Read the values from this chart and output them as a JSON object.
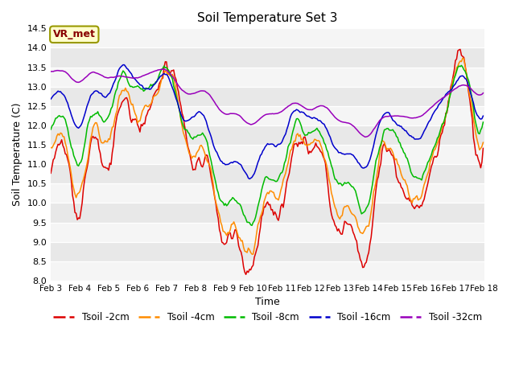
{
  "title": "Soil Temperature Set 3",
  "xlabel": "Time",
  "ylabel": "Soil Temperature (C)",
  "ylim": [
    8.0,
    14.5
  ],
  "y_ticks": [
    8.0,
    8.5,
    9.0,
    9.5,
    10.0,
    10.5,
    11.0,
    11.5,
    12.0,
    12.5,
    13.0,
    13.5,
    14.0,
    14.5
  ],
  "x_tick_labels": [
    "Feb 3",
    "Feb 4",
    "Feb 5",
    "Feb 6",
    "Feb 7",
    "Feb 8",
    "Feb 9",
    "Feb 10",
    "Feb 11",
    "Feb 12",
    "Feb 13",
    "Feb 14",
    "Feb 15",
    "Feb 16",
    "Feb 17",
    "Feb 18"
  ],
  "colors": {
    "Tsoil -2cm": "#dd0000",
    "Tsoil -4cm": "#ff8c00",
    "Tsoil -8cm": "#00bb00",
    "Tsoil -16cm": "#0000cc",
    "Tsoil -32cm": "#9900bb"
  },
  "bg_color": "#e8e8e8",
  "band_color1": "#e8e8e8",
  "band_color2": "#f5f5f5",
  "legend_label": "VR_met",
  "legend_box_color": "#ffffcc",
  "legend_box_edge": "#999900",
  "legend_text_color": "#880000",
  "figsize": [
    6.4,
    4.8
  ],
  "dpi": 100
}
